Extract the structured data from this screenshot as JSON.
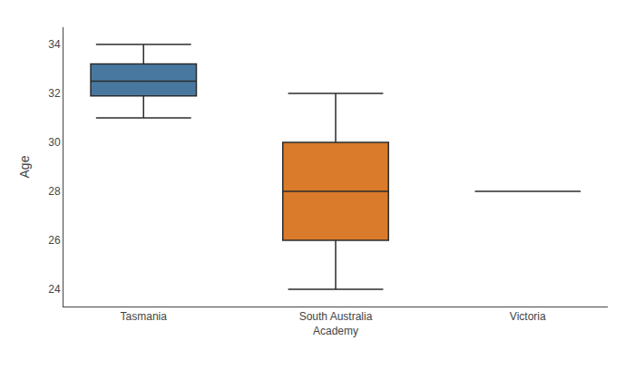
{
  "chart_data": {
    "type": "box",
    "ylabel": "Age",
    "categories": [
      "Tasmania",
      "South Australia\nAcademy",
      "Victoria"
    ],
    "whislo": [
      31.0,
      24.0,
      28.0
    ],
    "q1": [
      31.9,
      26.0,
      28.0
    ],
    "median": [
      32.5,
      28.0,
      28.0
    ],
    "q3": [
      33.2,
      30.0,
      28.0
    ],
    "whishi": [
      34.0,
      32.0,
      28.0
    ],
    "colors": [
      "#4878a0",
      "#d97b2b",
      "#333333"
    ],
    "ylim": [
      23.3,
      34.7
    ],
    "yticks": [
      24,
      26,
      28,
      30,
      32,
      34
    ],
    "grid": false
  }
}
